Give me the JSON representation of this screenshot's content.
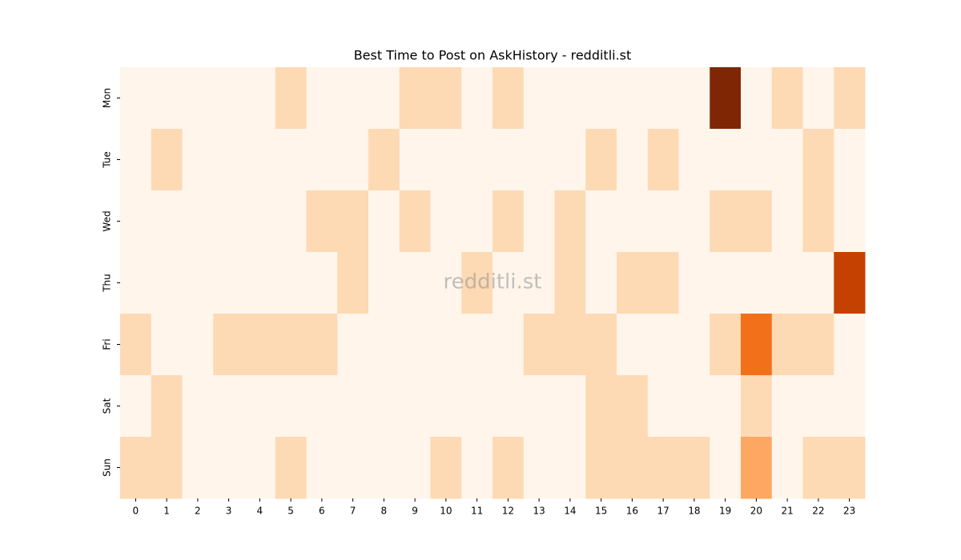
{
  "chart_data": {
    "type": "heatmap",
    "title": "Best Time to Post on AskHistory - redditli.st",
    "watermark": "redditli.st",
    "x": [
      0,
      1,
      2,
      3,
      4,
      5,
      6,
      7,
      8,
      9,
      10,
      11,
      12,
      13,
      14,
      15,
      16,
      17,
      18,
      19,
      20,
      21,
      22,
      23
    ],
    "y": [
      "Mon",
      "Tue",
      "Wed",
      "Thu",
      "Fri",
      "Sat",
      "Sun"
    ],
    "values": [
      [
        0,
        0,
        0,
        0,
        0,
        1,
        0,
        0,
        0,
        1,
        1,
        0,
        1,
        0,
        0,
        0,
        0,
        0,
        0,
        5,
        0,
        1,
        0,
        1
      ],
      [
        0,
        1,
        0,
        0,
        0,
        0,
        0,
        0,
        1,
        0,
        0,
        0,
        0,
        0,
        0,
        1,
        0,
        1,
        0,
        0,
        0,
        0,
        1,
        0
      ],
      [
        0,
        0,
        0,
        0,
        0,
        0,
        1,
        1,
        0,
        1,
        0,
        0,
        1,
        0,
        1,
        0,
        0,
        0,
        0,
        1,
        1,
        0,
        1,
        0
      ],
      [
        0,
        0,
        0,
        0,
        0,
        0,
        0,
        1,
        0,
        0,
        0,
        1,
        0,
        0,
        1,
        0,
        1,
        1,
        0,
        0,
        0,
        0,
        0,
        4
      ],
      [
        1,
        0,
        0,
        1,
        1,
        1,
        1,
        0,
        0,
        0,
        0,
        0,
        0,
        1,
        1,
        1,
        0,
        0,
        0,
        1,
        3,
        1,
        1,
        0
      ],
      [
        0,
        1,
        0,
        0,
        0,
        0,
        0,
        0,
        0,
        0,
        0,
        0,
        0,
        0,
        0,
        1,
        1,
        0,
        0,
        0,
        1,
        0,
        0,
        0
      ],
      [
        1,
        1,
        0,
        0,
        0,
        1,
        0,
        0,
        0,
        0,
        1,
        0,
        1,
        0,
        0,
        1,
        1,
        1,
        1,
        0,
        2,
        0,
        1,
        1
      ]
    ],
    "colormap": [
      "#fff5eb",
      "#fee6ce",
      "#fdd0a2",
      "#fdae6b",
      "#fd8d3c",
      "#f16913",
      "#d94801",
      "#a63603",
      "#7f2704"
    ]
  }
}
